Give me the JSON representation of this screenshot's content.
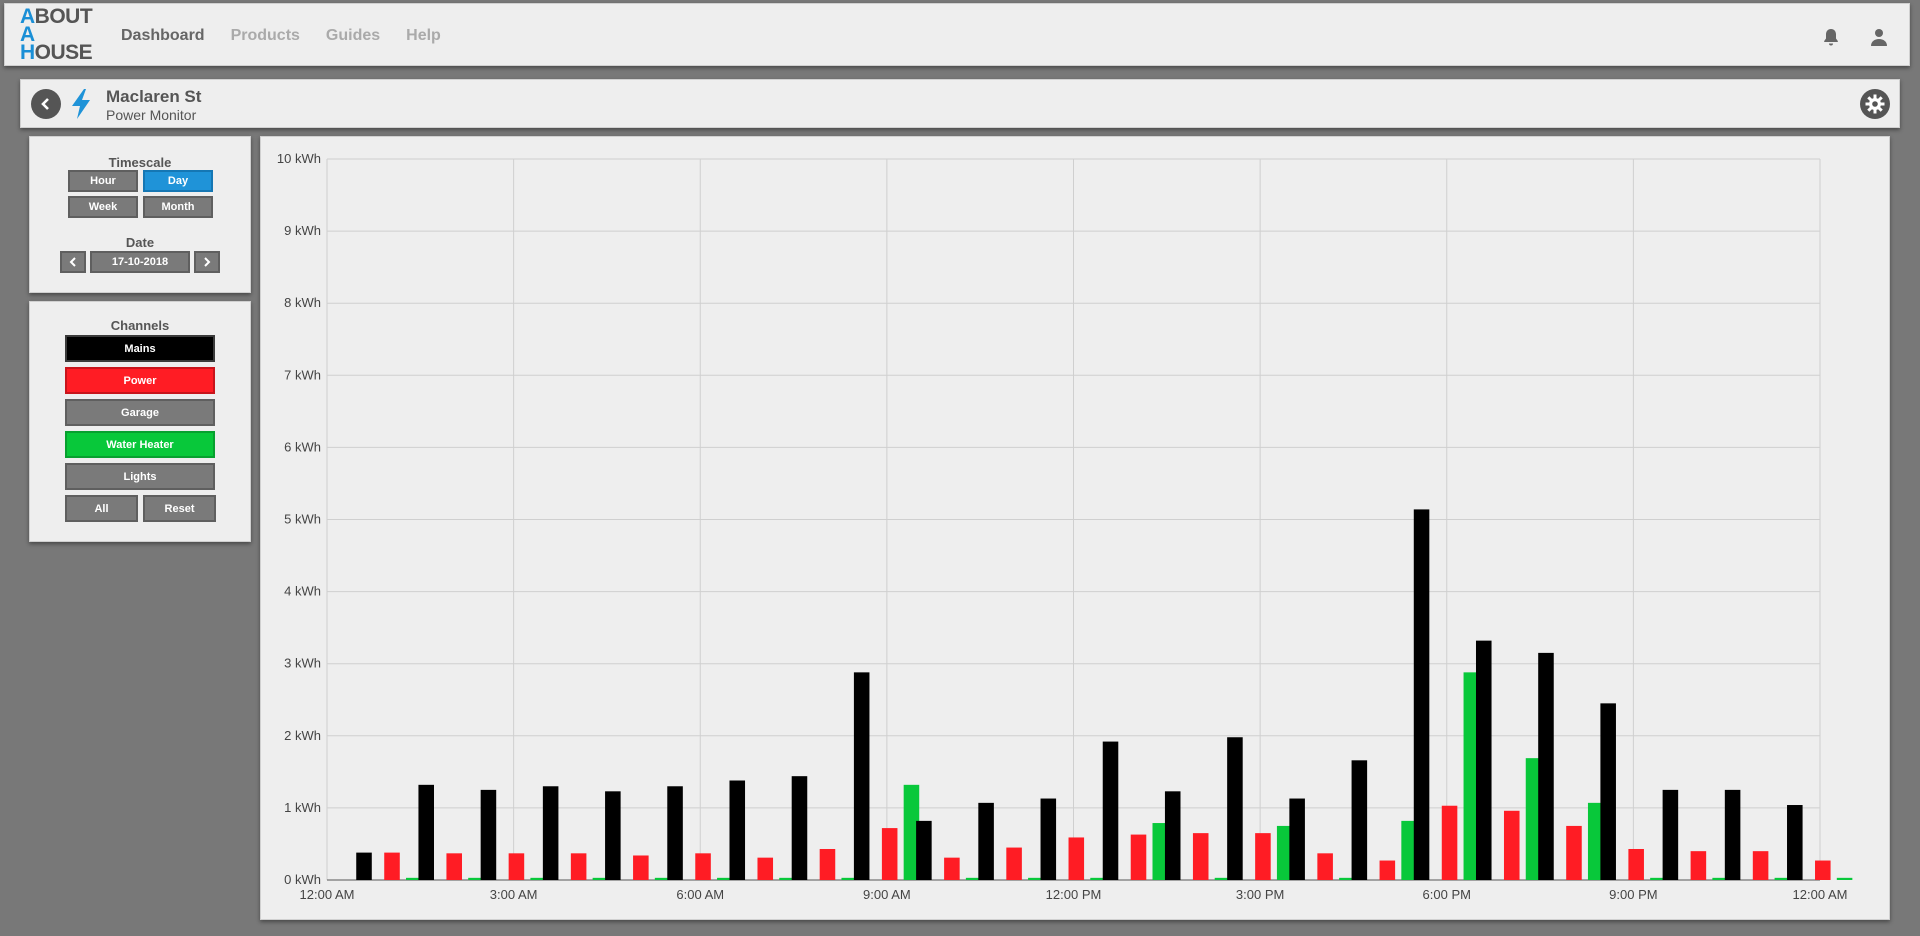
{
  "header": {
    "logo": [
      "A",
      "BOUT",
      "A",
      "",
      "H",
      "OUSE"
    ],
    "nav": [
      {
        "label": "Dashboard",
        "active": true
      },
      {
        "label": "Products",
        "active": false
      },
      {
        "label": "Guides",
        "active": false
      },
      {
        "label": "Help",
        "active": false
      }
    ],
    "icons": [
      "bell-icon",
      "user-icon"
    ]
  },
  "subheader": {
    "title": "Maclaren St",
    "subtitle": "Power Monitor",
    "icons": [
      "back-icon",
      "lightning-icon",
      "gear-icon"
    ]
  },
  "timescale": {
    "label": "Timescale",
    "options": [
      "Hour",
      "Day",
      "Week",
      "Month"
    ],
    "selected": "Day",
    "date_label": "Date",
    "date_value": "17-10-2018"
  },
  "channels": {
    "label": "Channels",
    "items": [
      {
        "label": "Mains",
        "color": "#000000"
      },
      {
        "label": "Power",
        "color": "#ff1c24"
      },
      {
        "label": "Garage",
        "color": "#7a7a7a"
      },
      {
        "label": "Water Heater",
        "color": "#08c83a"
      },
      {
        "label": "Lights",
        "color": "#7a7a7a"
      }
    ],
    "all_label": "All",
    "reset_label": "Reset"
  },
  "chart_data": {
    "type": "bar",
    "title": "",
    "xlabel": "",
    "ylabel": "",
    "ylim": [
      0,
      10
    ],
    "y_unit": "kWh",
    "yticks": [
      "0 kWh",
      "1 kWh",
      "2 kWh",
      "3 kWh",
      "4 kWh",
      "5 kWh",
      "6 kWh",
      "7 kWh",
      "8 kWh",
      "9 kWh",
      "10 kWh"
    ],
    "xticks": [
      "12:00 AM",
      "3:00 AM",
      "6:00 AM",
      "9:00 AM",
      "12:00 PM",
      "3:00 PM",
      "6:00 PM",
      "9:00 PM",
      "12:00 AM"
    ],
    "grid": true,
    "categories": [
      "12:00 AM",
      "1:00 AM",
      "2:00 AM",
      "3:00 AM",
      "4:00 AM",
      "5:00 AM",
      "6:00 AM",
      "7:00 AM",
      "8:00 AM",
      "9:00 AM",
      "10:00 AM",
      "11:00 AM",
      "12:00 PM",
      "1:00 PM",
      "2:00 PM",
      "3:00 PM",
      "4:00 PM",
      "5:00 PM",
      "6:00 PM",
      "7:00 PM",
      "8:00 PM",
      "9:00 PM",
      "10:00 PM",
      "11:00 PM"
    ],
    "series": [
      {
        "name": "Mains",
        "color": "#000000",
        "values": [
          0.38,
          1.32,
          1.25,
          1.3,
          1.23,
          1.3,
          1.38,
          1.44,
          2.88,
          0.82,
          1.07,
          1.13,
          1.92,
          1.23,
          1.98,
          1.13,
          1.66,
          5.14,
          3.32,
          3.15,
          2.45,
          1.25,
          1.25,
          1.04
        ]
      },
      {
        "name": "Power",
        "color": "#ff1c24",
        "values": [
          0.38,
          0.37,
          0.37,
          0.37,
          0.34,
          0.37,
          0.31,
          0.43,
          0.72,
          0.31,
          0.45,
          0.59,
          0.63,
          0.65,
          0.65,
          0.37,
          0.27,
          1.03,
          0.96,
          0.75,
          0.43,
          0.4,
          0.4,
          0.27
        ]
      },
      {
        "name": "Water Heater",
        "color": "#08c83a",
        "values": [
          0.03,
          0.03,
          0.03,
          0.03,
          0.03,
          0.03,
          0.03,
          0.03,
          1.32,
          0.03,
          0.03,
          0.03,
          0.79,
          0.03,
          0.75,
          0.03,
          0.82,
          2.88,
          1.69,
          1.07,
          0.03,
          0.03,
          0.03,
          0.03
        ]
      }
    ]
  }
}
